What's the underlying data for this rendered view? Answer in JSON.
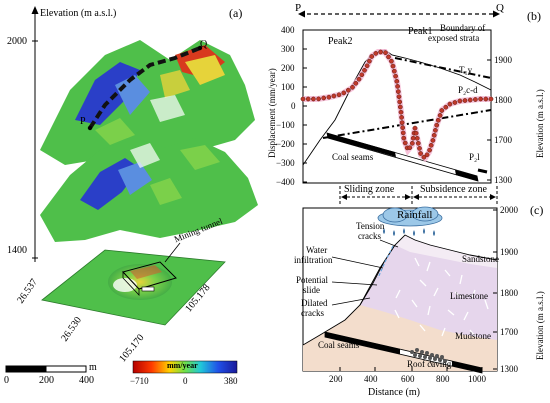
{
  "panel_a": {
    "label": "(a)",
    "axis_title": "Elevation (m a.s.l.)",
    "elev_ticks": [
      "2000",
      "1400"
    ],
    "lat_ticks": [
      "26.537",
      "26.530"
    ],
    "lon_ticks": [
      "105.178",
      "105.170"
    ],
    "point_p": "P",
    "point_q": "Q",
    "mining_tunnel": "Mining tunnel",
    "scale_ticks": [
      "0",
      "200",
      "400"
    ],
    "scale_unit": "m",
    "colorbar_title": "mm/year",
    "colorbar_ticks": [
      "−710",
      "0",
      "380"
    ]
  },
  "panel_b": {
    "label": "(b)",
    "p": "P",
    "q": "Q",
    "ylabel_left": "Displacement (mm/year)",
    "ylabel_right": "Elevation (m a.s.l.)",
    "left_ticks": [
      "400",
      "300",
      "200",
      "100",
      "0",
      "−100",
      "−200",
      "−300",
      "−400"
    ],
    "right_ticks": [
      "1900",
      "1800",
      "1700",
      "1300"
    ],
    "peak1": "Peak1",
    "peak2": "Peak2",
    "boundary": [
      "Boundary of",
      "exposed strata"
    ],
    "strata_t1y": "T₁y",
    "strata_p2cd": "P₂c-d",
    "strata_p2l": "P₂l",
    "coal_seams": "Coal seams"
  },
  "panel_c": {
    "label": "(c)",
    "sliding_zone": "Sliding zone",
    "subsidence_zone": "Subsidence zone",
    "rainfall": "Rainfall",
    "tension_cracks": [
      "Tension",
      "cracks"
    ],
    "water_infiltration": [
      "Water",
      "infiltration"
    ],
    "potential_slide": [
      "Potential",
      "slide"
    ],
    "dilated_cracks": [
      "Dilated",
      "cracks"
    ],
    "sandstone": "Sandstone",
    "limestone": "Limestone",
    "mudstone": "Mudstone",
    "coal_seams": "Coal seams",
    "roof_caving": "Roof caving",
    "xlabel": "Distance (m)",
    "ylabel_right": "Elevation (m a.s.l.)",
    "x_ticks": [
      "200",
      "400",
      "600",
      "800",
      "1000"
    ],
    "right_ticks": [
      "2000",
      "1900",
      "1800",
      "1700",
      "1300"
    ]
  },
  "colors": {
    "insar_green": "#4fbf4a",
    "insar_blue": "#2a3fc8",
    "insar_red": "#d83a1e",
    "insar_yellow": "#e6d33a",
    "sandstone": "#f0e8f0",
    "limestone": "#e6d6ec",
    "mudstone": "#f3ddcc",
    "profile_dot": "#c0392b"
  }
}
